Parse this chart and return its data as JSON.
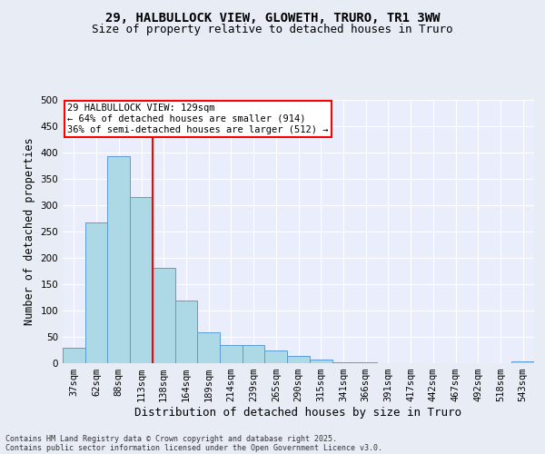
{
  "title_line1": "29, HALBULLOCK VIEW, GLOWETH, TRURO, TR1 3WW",
  "title_line2": "Size of property relative to detached houses in Truro",
  "xlabel": "Distribution of detached houses by size in Truro",
  "ylabel": "Number of detached properties",
  "footer_line1": "Contains HM Land Registry data © Crown copyright and database right 2025.",
  "footer_line2": "Contains public sector information licensed under the Open Government Licence v3.0.",
  "categories": [
    "37sqm",
    "62sqm",
    "88sqm",
    "113sqm",
    "138sqm",
    "164sqm",
    "189sqm",
    "214sqm",
    "239sqm",
    "265sqm",
    "290sqm",
    "315sqm",
    "341sqm",
    "366sqm",
    "391sqm",
    "417sqm",
    "442sqm",
    "467sqm",
    "492sqm",
    "518sqm",
    "543sqm"
  ],
  "values": [
    29,
    267,
    393,
    315,
    181,
    119,
    59,
    34,
    34,
    24,
    13,
    7,
    2,
    1,
    0,
    0,
    0,
    0,
    0,
    0,
    4
  ],
  "bar_color": "#add8e6",
  "bar_edge_color": "#5b9bd5",
  "annotation_line1": "29 HALBULLOCK VIEW: 129sqm",
  "annotation_line2": "← 64% of detached houses are smaller (914)",
  "annotation_line3": "36% of semi-detached houses are larger (512) →",
  "red_line_x": 3.5,
  "ylim": [
    0,
    500
  ],
  "yticks": [
    0,
    50,
    100,
    150,
    200,
    250,
    300,
    350,
    400,
    450,
    500
  ],
  "bg_color": "#e8ecf5",
  "plot_bg_color": "#eaeefc",
  "grid_color": "#ffffff",
  "title_fontsize": 10,
  "subtitle_fontsize": 9,
  "axis_label_fontsize": 8.5,
  "tick_fontsize": 7.5,
  "footer_fontsize": 6
}
